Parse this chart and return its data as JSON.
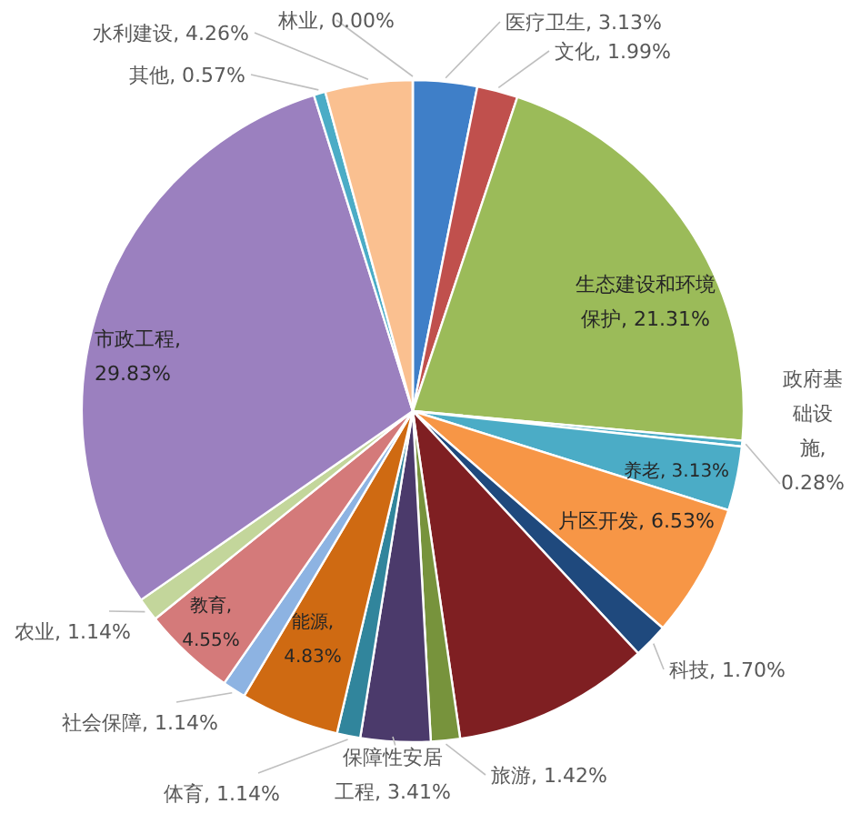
{
  "chart_data": {
    "type": "pie",
    "categories": [
      "医疗卫生",
      "文化",
      "生态建设和环境保护",
      "政府基础设施",
      "养老",
      "片区开发",
      "科技",
      null,
      "旅游",
      "保障性安居工程",
      "体育",
      "能源",
      "社会保障",
      "教育",
      "农业",
      "市政工程",
      "其他",
      "水利建设",
      "林业"
    ],
    "values": [
      3.13,
      1.99,
      21.31,
      0.28,
      3.13,
      6.53,
      1.7,
      9.64,
      1.42,
      3.41,
      1.14,
      4.83,
      1.14,
      4.55,
      1.14,
      29.83,
      0.57,
      4.26,
      0.0
    ],
    "colors": [
      "#3f7fc8",
      "#c0504d",
      "#9bbb59",
      "#4bacc6",
      "#4bacc6",
      "#f79646",
      "#1f497d",
      "#7f1f22",
      "#77933c",
      "#4b3a6b",
      "#31859c",
      "#cf6a12",
      "#8db3e2",
      "#d47a7a",
      "#c3d69b",
      "#9b80bf",
      "#4bacc6",
      "#fac090",
      "#f0f0f0"
    ],
    "value_labels": [
      ", 3.13%",
      ", 1.99%",
      ", 21.31%",
      ", 0.28%",
      ", 3.13%",
      ", 6.53%",
      ", 1.70%",
      null,
      ", 1.42%",
      ", 3.41%",
      ", 1.14%",
      ", 4.83%",
      ", 1.14%",
      ", 4.55%",
      ", 1.14%",
      ", 29.83%",
      ", 0.57%",
      ", 4.26%",
      ", 0.00%"
    ],
    "legend": false
  }
}
